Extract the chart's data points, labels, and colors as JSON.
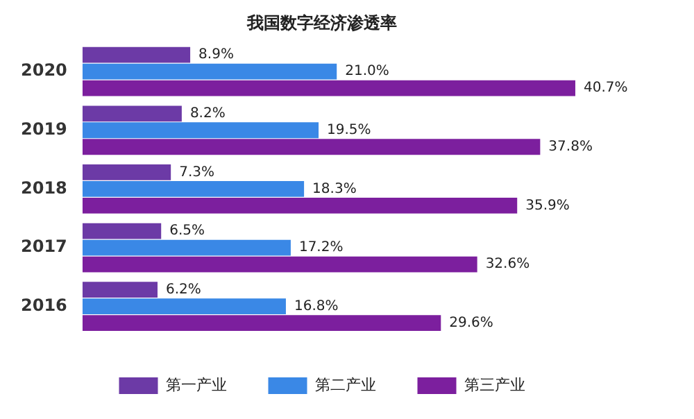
{
  "chart_data": {
    "type": "bar",
    "orientation": "horizontal",
    "title": "我国数字经济渗透率",
    "categories": [
      "2020",
      "2019",
      "2018",
      "2017",
      "2016"
    ],
    "legend": "bottom",
    "series": [
      {
        "name": "第一产业",
        "color": "#6c3aa6",
        "values": [
          8.9,
          8.2,
          7.3,
          6.5,
          6.2
        ],
        "value_labels": [
          "8.9%",
          "8.2%",
          "7.3%",
          "6.5%",
          "6.2%"
        ]
      },
      {
        "name": "第二产业",
        "color": "#3a88e6",
        "values": [
          21.0,
          19.5,
          18.3,
          17.2,
          16.8
        ],
        "value_labels": [
          "21.0%",
          "19.5%",
          "18.3%",
          "17.2%",
          "16.8%"
        ]
      },
      {
        "name": "第三产业",
        "color": "#7c1f9e",
        "values": [
          40.7,
          37.8,
          35.9,
          32.6,
          29.6
        ],
        "value_labels": [
          "40.7%",
          "37.8%",
          "35.9%",
          "32.6%",
          "29.6%"
        ]
      }
    ]
  }
}
